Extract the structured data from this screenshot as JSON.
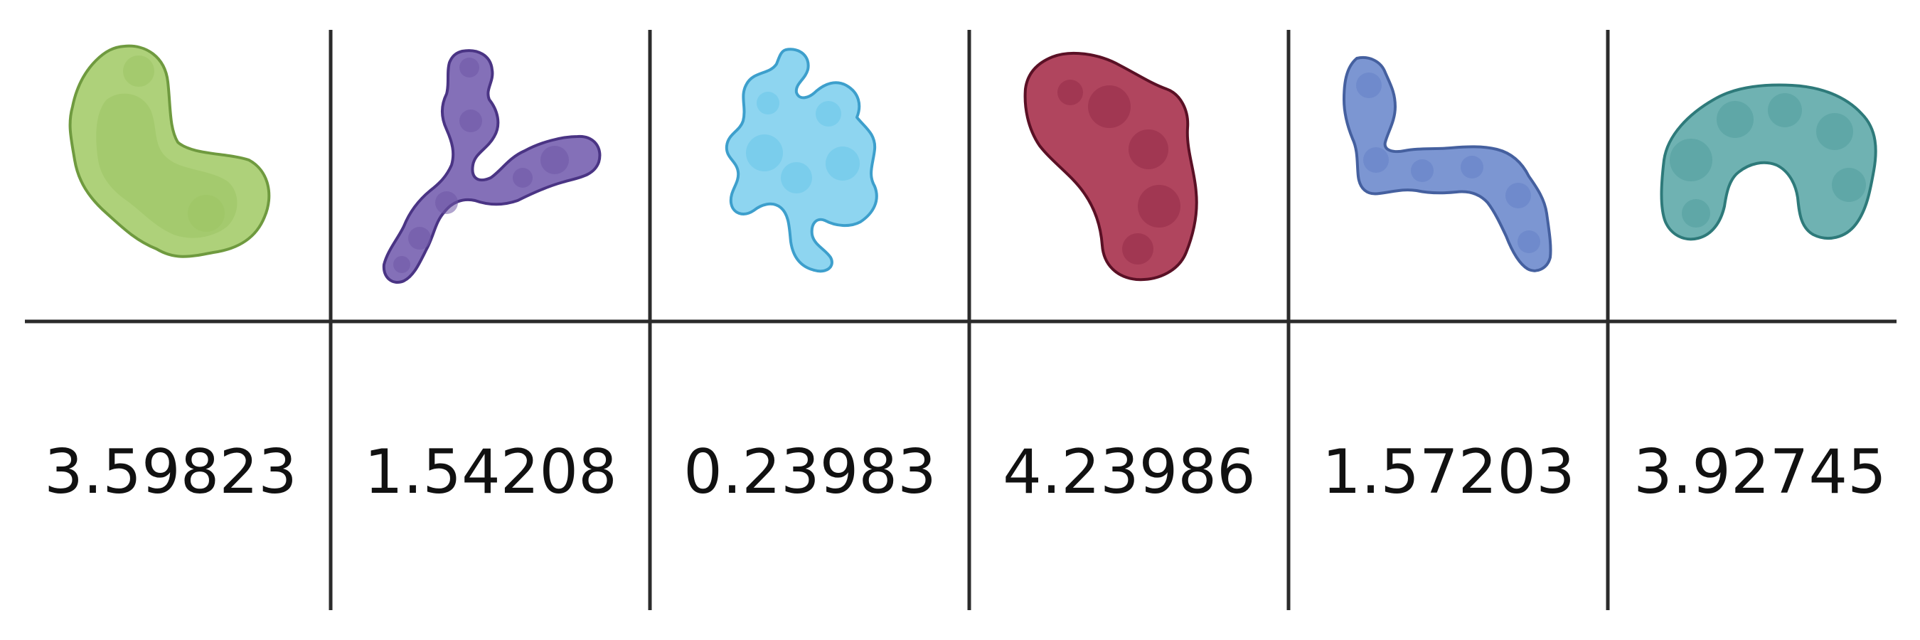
{
  "table": {
    "columns": [
      {
        "id": "green",
        "value": "3.59823",
        "shape_icon": "green-protein-blob-icon",
        "fill": "#aed17a",
        "shade": "#9cc465",
        "stroke": "#6f9a3f"
      },
      {
        "id": "purple",
        "value": "1.54208",
        "shape_icon": "purple-y-shaped-protein-icon",
        "fill": "#8470b8",
        "shade": "#6f58a6",
        "stroke": "#4a3484"
      },
      {
        "id": "light-blue",
        "value": "0.23983",
        "shape_icon": "light-blue-protein-blob-icon",
        "fill": "#8ed5f0",
        "shade": "#6ac6ea",
        "stroke": "#3d9fcc"
      },
      {
        "id": "crimson",
        "value": "4.23986",
        "shape_icon": "crimson-protein-blob-icon",
        "fill": "#b0455e",
        "shade": "#962c48",
        "stroke": "#5a1025"
      },
      {
        "id": "blue",
        "value": "1.57203",
        "shape_icon": "blue-s-shaped-protein-icon",
        "fill": "#7c96d2",
        "shade": "#6482c6",
        "stroke": "#45609f"
      },
      {
        "id": "teal",
        "value": "3.92745",
        "shape_icon": "teal-arched-protein-icon",
        "fill": "#6fb2b2",
        "shade": "#529f9f",
        "stroke": "#2e7a7a"
      }
    ]
  }
}
